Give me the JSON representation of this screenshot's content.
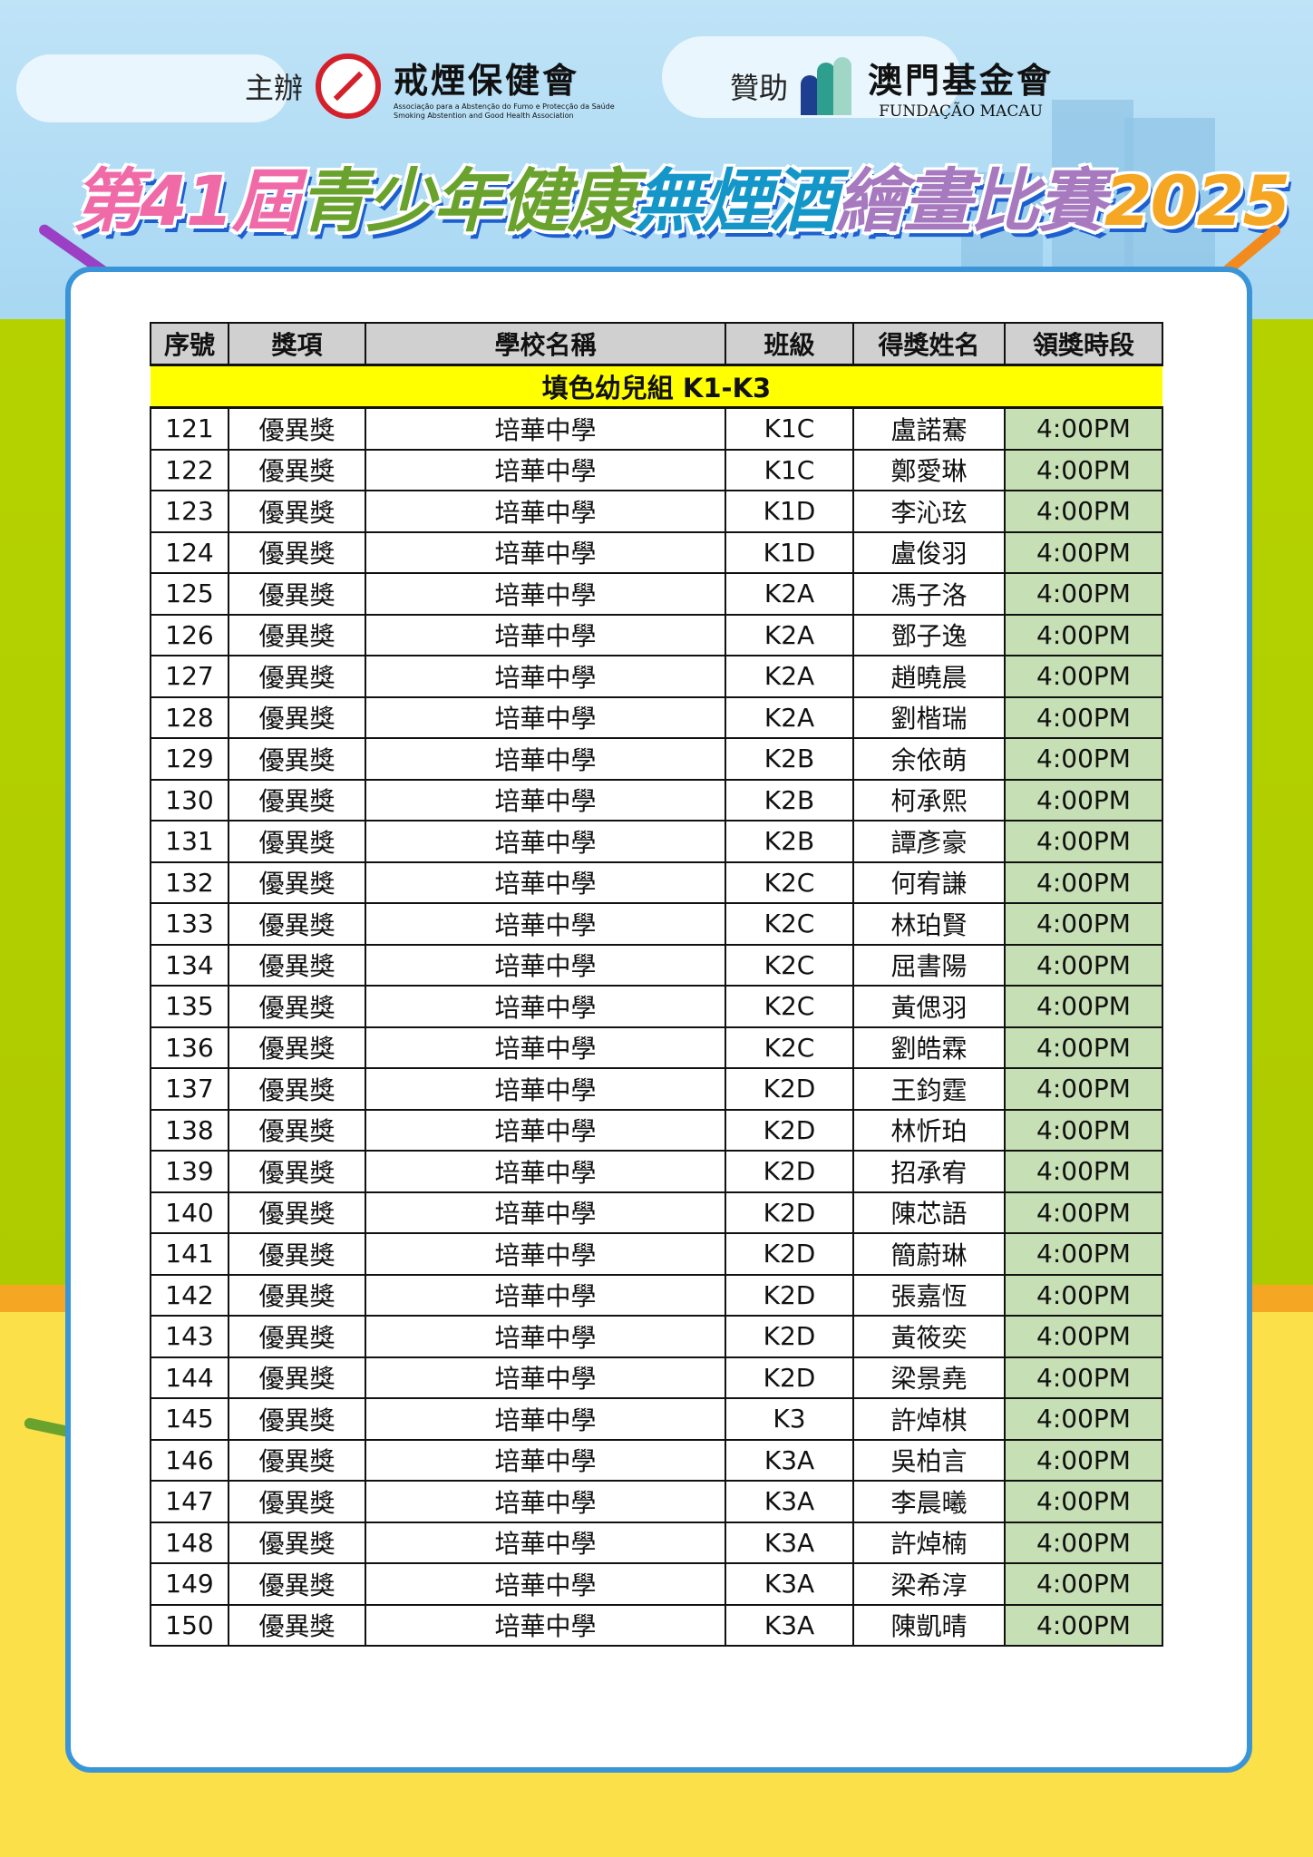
{
  "header": {
    "organizer_label": "主辦",
    "organizer_name": "戒煙保健會",
    "organizer_subtitle_pt": "Associação para a Abstenção do Fumo e Protecção da Saúde",
    "organizer_subtitle_en": "Smoking Abstention and Good Health Association",
    "sponsor_label": "贊助",
    "sponsor_name": "澳門基金會",
    "sponsor_subtitle": "FUNDAÇÃO MACAU",
    "title_parts": [
      {
        "text": "第41屆",
        "color": "#f06aa8"
      },
      {
        "text": "青少年健康",
        "color": "#6aa22e"
      },
      {
        "text": "無煙酒",
        "color": "#1596c8"
      },
      {
        "text": "繪畫比賽",
        "color": "#a77ac0"
      },
      {
        "text": "2025",
        "color": "#f5a623"
      }
    ]
  },
  "table": {
    "caption": "填色幼兒組 K1-K3",
    "columns": [
      "序號",
      "獎項",
      "學校名稱",
      "班級",
      "得獎姓名",
      "領獎時段"
    ],
    "rows": [
      [
        "121",
        "優異獎",
        "培華中學",
        "K1C",
        "盧諾騫",
        "4:00PM"
      ],
      [
        "122",
        "優異獎",
        "培華中學",
        "K1C",
        "鄭愛琳",
        "4:00PM"
      ],
      [
        "123",
        "優異獎",
        "培華中學",
        "K1D",
        "李沁玹",
        "4:00PM"
      ],
      [
        "124",
        "優異獎",
        "培華中學",
        "K1D",
        "盧俊羽",
        "4:00PM"
      ],
      [
        "125",
        "優異獎",
        "培華中學",
        "K2A",
        "馮子洛",
        "4:00PM"
      ],
      [
        "126",
        "優異獎",
        "培華中學",
        "K2A",
        "鄧子逸",
        "4:00PM"
      ],
      [
        "127",
        "優異獎",
        "培華中學",
        "K2A",
        "趙曉晨",
        "4:00PM"
      ],
      [
        "128",
        "優異獎",
        "培華中學",
        "K2A",
        "劉楷瑞",
        "4:00PM"
      ],
      [
        "129",
        "優異獎",
        "培華中學",
        "K2B",
        "余依萌",
        "4:00PM"
      ],
      [
        "130",
        "優異獎",
        "培華中學",
        "K2B",
        "柯承熙",
        "4:00PM"
      ],
      [
        "131",
        "優異獎",
        "培華中學",
        "K2B",
        "譚彥豪",
        "4:00PM"
      ],
      [
        "132",
        "優異獎",
        "培華中學",
        "K2C",
        "何宥謙",
        "4:00PM"
      ],
      [
        "133",
        "優異獎",
        "培華中學",
        "K2C",
        "林珀賢",
        "4:00PM"
      ],
      [
        "134",
        "優異獎",
        "培華中學",
        "K2C",
        "屈書陽",
        "4:00PM"
      ],
      [
        "135",
        "優異獎",
        "培華中學",
        "K2C",
        "黃偲羽",
        "4:00PM"
      ],
      [
        "136",
        "優異獎",
        "培華中學",
        "K2C",
        "劉皓霖",
        "4:00PM"
      ],
      [
        "137",
        "優異獎",
        "培華中學",
        "K2D",
        "王鈞霆",
        "4:00PM"
      ],
      [
        "138",
        "優異獎",
        "培華中學",
        "K2D",
        "林忻珀",
        "4:00PM"
      ],
      [
        "139",
        "優異獎",
        "培華中學",
        "K2D",
        "招承宥",
        "4:00PM"
      ],
      [
        "140",
        "優異獎",
        "培華中學",
        "K2D",
        "陳芯語",
        "4:00PM"
      ],
      [
        "141",
        "優異獎",
        "培華中學",
        "K2D",
        "簡蔚琳",
        "4:00PM"
      ],
      [
        "142",
        "優異獎",
        "培華中學",
        "K2D",
        "張嘉恆",
        "4:00PM"
      ],
      [
        "143",
        "優異獎",
        "培華中學",
        "K2D",
        "黃筱奕",
        "4:00PM"
      ],
      [
        "144",
        "優異獎",
        "培華中學",
        "K2D",
        "梁景堯",
        "4:00PM"
      ],
      [
        "145",
        "優異獎",
        "培華中學",
        "K3",
        "許焯棋",
        "4:00PM"
      ],
      [
        "146",
        "優異獎",
        "培華中學",
        "K3A",
        "吳柏言",
        "4:00PM"
      ],
      [
        "147",
        "優異獎",
        "培華中學",
        "K3A",
        "李晨曦",
        "4:00PM"
      ],
      [
        "148",
        "優異獎",
        "培華中學",
        "K3A",
        "許焯楠",
        "4:00PM"
      ],
      [
        "149",
        "優異獎",
        "培華中學",
        "K3A",
        "梁希淳",
        "4:00PM"
      ],
      [
        "150",
        "優異獎",
        "培華中學",
        "K3A",
        "陳凱晴",
        "4:00PM"
      ]
    ]
  },
  "colors": {
    "caption_bg": "#ffff00",
    "header_bg": "#d0d0d0",
    "time_bg": "#c6dfb4",
    "card_border": "#3a95d8"
  }
}
